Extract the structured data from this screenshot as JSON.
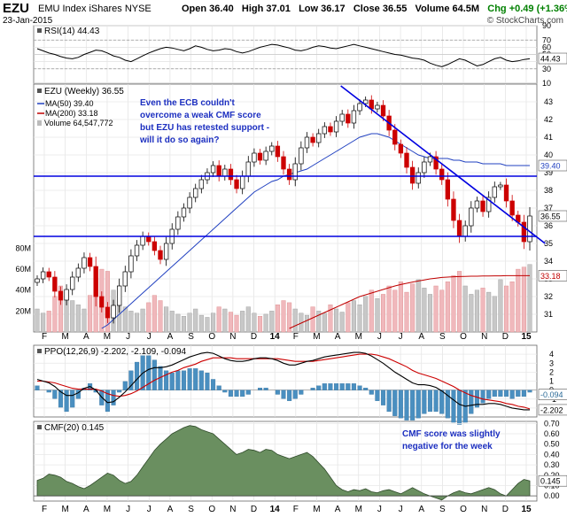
{
  "header": {
    "symbol": "EZU",
    "name": "EMU Index iShares  NYSE",
    "date": "23-Jan-2015",
    "open": "Open 36.40",
    "high": "High 37.01",
    "low": "Low 36.17",
    "close": "Close 36.55",
    "volume": "Volume 64.5M",
    "change": "Chg +0.49 (+1.36%)",
    "change_arrow": "▲",
    "brand": "© StockCharts.com"
  },
  "colors": {
    "up": "#000000",
    "down": "#cc0000",
    "ma50": "#2040c0",
    "ma200": "#c00000",
    "hline": "#0000e0",
    "hist": "#4a8fc0",
    "cmf": "#6a8f60"
  },
  "chart_data": [
    {
      "type": "line",
      "panel": "RSI",
      "legend": "RSI(14) 44.43",
      "ylim": [
        10,
        90
      ],
      "y_ticks": [
        10,
        30,
        40,
        50,
        60,
        70,
        90
      ],
      "ref_lines": [
        70,
        30
      ],
      "last_value_label": "44.43",
      "values": [
        58,
        55,
        52,
        50,
        47,
        45,
        44,
        46,
        50,
        53,
        56,
        55,
        52,
        48,
        46,
        42,
        40,
        44,
        48,
        52,
        55,
        58,
        60,
        59,
        57,
        55,
        58,
        62,
        60,
        57,
        55,
        56,
        58,
        57,
        54,
        52,
        54,
        57,
        60,
        62,
        64,
        63,
        61,
        59,
        56,
        55,
        57,
        60,
        62,
        61,
        59,
        58,
        60,
        62,
        64,
        62,
        60,
        58,
        56,
        54,
        52,
        50,
        49,
        47,
        45,
        44,
        42,
        38,
        35,
        33,
        36,
        40,
        44,
        42,
        38,
        34,
        36,
        40,
        44,
        46,
        42,
        40,
        41,
        43,
        44
      ]
    },
    {
      "type": "candlestick",
      "panel": "Price",
      "legend": {
        "title": "EZU (Weekly) 36.55",
        "ma50": "MA(50) 39.40",
        "ma200": "MA(200) 33.18",
        "volume": "Volume 64,547,772"
      },
      "ylim": [
        30,
        44
      ],
      "y_ticks": [
        31,
        32,
        33,
        34,
        35,
        36,
        37,
        38,
        39,
        40,
        41,
        42,
        43
      ],
      "volume_ticks": [
        "20M",
        "40M",
        "60M",
        "80M"
      ],
      "volume_max_M": 90,
      "last_labels": {
        "close": "36.55",
        "ma50": "39.40",
        "ma200": "33.18"
      },
      "support_line": 35.4,
      "resistance_line": 38.8,
      "trendline": {
        "from": {
          "x": 1.15,
          "y": 43.9
        },
        "to": {
          "x": 10.9,
          "y": 35.0
        }
      },
      "annotation": "Even the ECB couldn't overcome a weak CMF score but EZU has retested support - will it do so again?",
      "x_ticks": [
        "F",
        "M",
        "A",
        "M",
        "J",
        "J",
        "A",
        "S",
        "O",
        "N",
        "D",
        "14",
        "F",
        "M",
        "A",
        "M",
        "J",
        "J",
        "A",
        "S",
        "O",
        "N",
        "D",
        "15"
      ],
      "closes": [
        33.0,
        33.4,
        33.1,
        32.3,
        31.8,
        32.4,
        33.1,
        33.6,
        34.2,
        33.7,
        32.0,
        31.4,
        30.8,
        31.5,
        32.6,
        33.4,
        34.3,
        34.9,
        35.4,
        35.1,
        34.6,
        34.1,
        35.0,
        35.8,
        36.5,
        37.0,
        37.6,
        38.1,
        38.6,
        39.0,
        39.4,
        38.8,
        39.2,
        38.6,
        38.1,
        38.8,
        39.6,
        40.1,
        39.7,
        40.2,
        40.5,
        39.9,
        39.2,
        38.6,
        39.5,
        40.4,
        41.0,
        40.7,
        41.2,
        41.6,
        41.3,
        41.9,
        42.3,
        41.8,
        42.5,
        42.9,
        43.1,
        42.6,
        42.8,
        42.2,
        41.4,
        40.6,
        40.1,
        39.3,
        38.4,
        39.0,
        39.6,
        39.9,
        39.2,
        38.6,
        37.5,
        36.3,
        35.4,
        36.0,
        37.0,
        37.4,
        36.8,
        37.6,
        38.2,
        38.3,
        37.4,
        36.6,
        36.2,
        35.1,
        36.55
      ],
      "volumes": [
        22,
        18,
        20,
        34,
        44,
        40,
        30,
        26,
        22,
        35,
        52,
        60,
        58,
        40,
        30,
        24,
        20,
        18,
        22,
        28,
        35,
        30,
        24,
        20,
        17,
        15,
        18,
        22,
        16,
        14,
        18,
        24,
        22,
        19,
        16,
        20,
        24,
        18,
        15,
        17,
        20,
        26,
        30,
        28,
        22,
        18,
        16,
        24,
        20,
        18,
        26,
        22,
        19,
        28,
        30,
        26,
        34,
        40,
        32,
        36,
        44,
        40,
        48,
        38,
        46,
        50,
        42,
        36,
        44,
        40,
        48,
        54,
        58,
        44,
        36,
        40,
        42,
        38,
        34,
        50,
        44,
        48,
        60,
        62,
        64.5
      ],
      "ma50": [
        null,
        null,
        null,
        null,
        null,
        null,
        null,
        null,
        null,
        null,
        null,
        30.2,
        30.4,
        30.7,
        31.0,
        31.3,
        31.6,
        31.9,
        32.2,
        32.5,
        32.8,
        33.1,
        33.4,
        33.7,
        34.0,
        34.3,
        34.6,
        34.9,
        35.2,
        35.5,
        35.8,
        36.1,
        36.4,
        36.7,
        37.0,
        37.3,
        37.6,
        37.9,
        38.1,
        38.3,
        38.5,
        38.6,
        38.8,
        38.9,
        39.0,
        39.1,
        39.2,
        39.4,
        39.6,
        39.8,
        40.0,
        40.2,
        40.4,
        40.6,
        40.8,
        41.0,
        41.1,
        41.2,
        41.2,
        41.1,
        41.0,
        40.8,
        40.6,
        40.4,
        40.2,
        40.0,
        39.9,
        39.8,
        39.8,
        39.8,
        39.8,
        39.7,
        39.7,
        39.6,
        39.6,
        39.6,
        39.5,
        39.5,
        39.5,
        39.5,
        39.4,
        39.4,
        39.4,
        39.4,
        39.4
      ],
      "ma200": [
        null,
        null,
        null,
        null,
        null,
        null,
        null,
        null,
        null,
        null,
        null,
        null,
        null,
        null,
        null,
        null,
        null,
        null,
        null,
        null,
        null,
        null,
        null,
        null,
        null,
        null,
        null,
        null,
        null,
        null,
        null,
        null,
        null,
        null,
        null,
        null,
        null,
        null,
        null,
        null,
        null,
        null,
        null,
        30.2,
        30.35,
        30.5,
        30.65,
        30.8,
        30.95,
        31.1,
        31.25,
        31.4,
        31.55,
        31.7,
        31.85,
        32.0,
        32.1,
        32.2,
        32.3,
        32.4,
        32.5,
        32.6,
        32.68,
        32.75,
        32.82,
        32.88,
        32.94,
        33.0,
        33.04,
        33.08,
        33.1,
        33.12,
        33.13,
        33.14,
        33.15,
        33.15,
        33.16,
        33.16,
        33.17,
        33.17,
        33.18,
        33.18,
        33.18,
        33.18,
        33.18
      ]
    },
    {
      "type": "line",
      "panel": "PPO",
      "legend": "PPO(12,26,9) -2.202, -2.109, -0.094",
      "ylim": [
        -3,
        5
      ],
      "y_ticks": [
        -2,
        -1,
        0,
        1,
        2,
        3,
        4
      ],
      "last_labels": {
        "hist": "-0.094",
        "ppo": "-2.202"
      },
      "ppo": [
        1.2,
        1.0,
        0.8,
        0.4,
        -0.2,
        -0.6,
        -0.6,
        -0.3,
        0.2,
        0.4,
        0.0,
        -0.8,
        -1.4,
        -1.3,
        -0.8,
        -0.2,
        0.5,
        1.2,
        1.9,
        2.3,
        2.5,
        2.5,
        2.6,
        2.8,
        3.1,
        3.4,
        3.7,
        3.9,
        4.1,
        4.2,
        4.1,
        3.8,
        3.5,
        3.3,
        3.2,
        3.2,
        3.3,
        3.5,
        3.6,
        3.6,
        3.5,
        3.3,
        3.0,
        2.8,
        2.8,
        3.0,
        3.2,
        3.3,
        3.5,
        3.7,
        3.8,
        3.9,
        4.0,
        4.1,
        4.2,
        4.2,
        4.1,
        3.8,
        3.4,
        3.0,
        2.5,
        2.0,
        1.6,
        1.2,
        0.8,
        0.6,
        0.6,
        0.5,
        0.3,
        -0.1,
        -0.6,
        -1.1,
        -1.6,
        -1.8,
        -1.7,
        -1.6,
        -1.6,
        -1.5,
        -1.5,
        -1.6,
        -1.8,
        -2.0,
        -2.1,
        -2.2,
        -2.2
      ],
      "signal": [
        1.0,
        1.0,
        0.9,
        0.8,
        0.6,
        0.4,
        0.2,
        0.1,
        0.1,
        0.1,
        0.1,
        -0.1,
        -0.4,
        -0.6,
        -0.7,
        -0.6,
        -0.4,
        -0.1,
        0.3,
        0.7,
        1.1,
        1.4,
        1.7,
        2.0,
        2.2,
        2.5,
        2.7,
        2.9,
        3.2,
        3.4,
        3.6,
        3.6,
        3.6,
        3.6,
        3.5,
        3.5,
        3.5,
        3.5,
        3.5,
        3.5,
        3.5,
        3.5,
        3.4,
        3.3,
        3.2,
        3.2,
        3.2,
        3.2,
        3.3,
        3.4,
        3.5,
        3.6,
        3.7,
        3.8,
        3.9,
        4.0,
        4.0,
        4.0,
        3.9,
        3.7,
        3.5,
        3.2,
        2.9,
        2.6,
        2.2,
        1.9,
        1.7,
        1.5,
        1.3,
        1.0,
        0.7,
        0.4,
        0.0,
        -0.3,
        -0.6,
        -0.8,
        -1.0,
        -1.1,
        -1.2,
        -1.3,
        -1.5,
        -1.6,
        -1.8,
        -1.9,
        -2.1
      ]
    },
    {
      "type": "area",
      "panel": "CMF",
      "legend": "CMF(20) 0.145",
      "ylim": [
        -0.05,
        0.72
      ],
      "y_ticks": [
        "0.00",
        "0.10",
        "0.20",
        "0.30",
        "0.40",
        "0.50",
        "0.60",
        "0.70"
      ],
      "last_value_label": "0.145",
      "annotation": "CMF score was slightly negative for the week",
      "values": [
        0.15,
        0.17,
        0.21,
        0.2,
        0.18,
        0.14,
        0.12,
        0.09,
        0.07,
        0.1,
        0.14,
        0.18,
        0.22,
        0.2,
        0.15,
        0.12,
        0.14,
        0.2,
        0.28,
        0.36,
        0.44,
        0.5,
        0.55,
        0.6,
        0.63,
        0.66,
        0.68,
        0.67,
        0.64,
        0.62,
        0.6,
        0.55,
        0.5,
        0.45,
        0.4,
        0.42,
        0.45,
        0.44,
        0.42,
        0.45,
        0.44,
        0.4,
        0.38,
        0.36,
        0.38,
        0.4,
        0.42,
        0.38,
        0.32,
        0.26,
        0.18,
        0.1,
        0.06,
        0.04,
        0.06,
        0.05,
        0.07,
        0.04,
        0.03,
        0.05,
        0.06,
        0.04,
        0.02,
        0.05,
        0.08,
        0.05,
        0.02,
        0.0,
        -0.02,
        -0.04,
        0.0,
        0.03,
        0.05,
        0.03,
        0.02,
        0.04,
        0.06,
        0.08,
        0.06,
        0.02,
        0.0,
        0.06,
        0.12,
        0.16,
        0.145
      ]
    }
  ]
}
